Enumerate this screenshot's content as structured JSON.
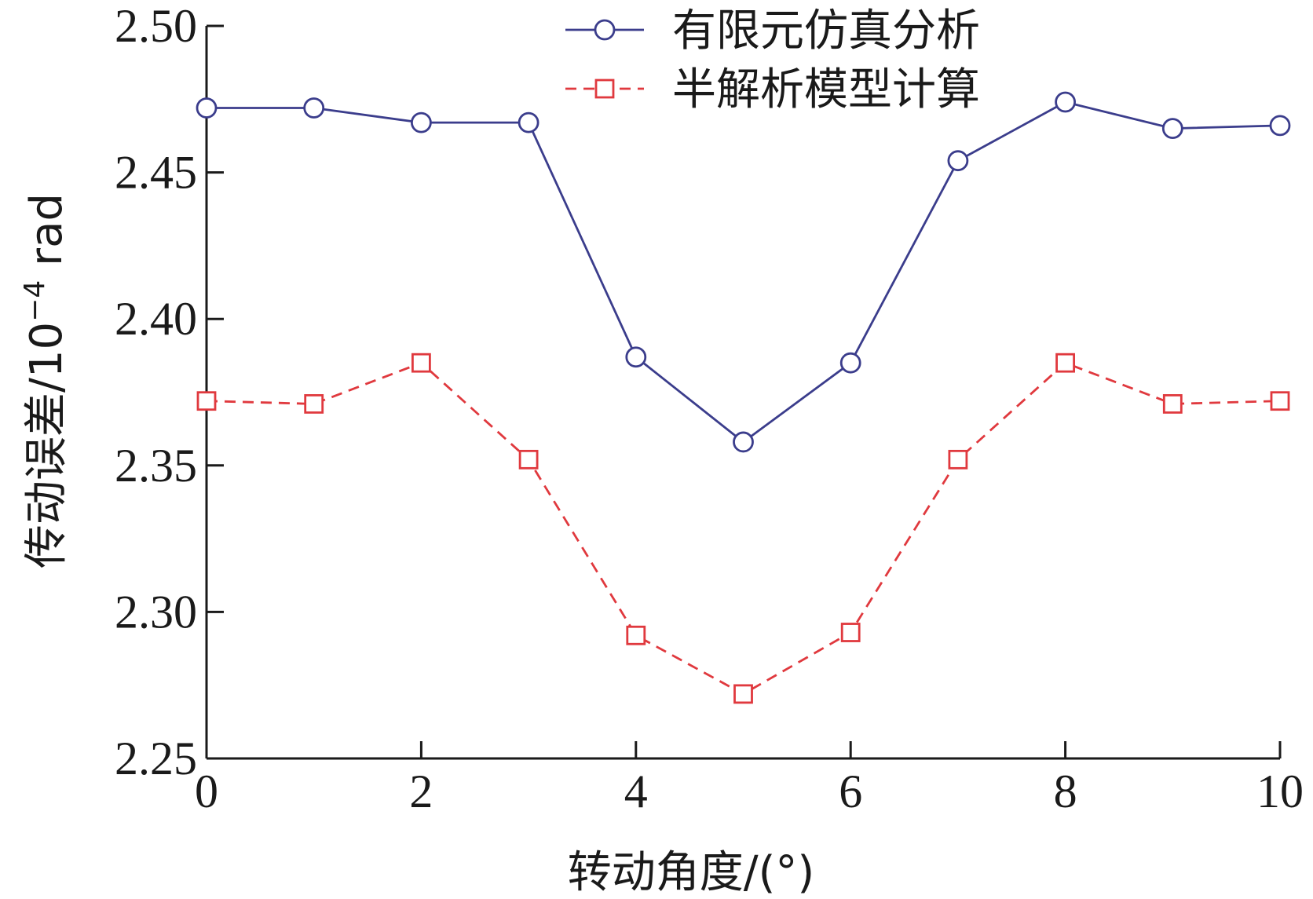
{
  "chart_data": {
    "type": "line",
    "xlabel": "转动角度/(°)",
    "ylabel": {
      "prefix": "传动误差/10",
      "sup": "−4",
      "suffix": " rad"
    },
    "xlim": [
      0,
      10
    ],
    "ylim": [
      2.25,
      2.5
    ],
    "x_ticks": [
      0,
      2,
      4,
      6,
      8,
      10
    ],
    "x_tick_labels": [
      "0",
      "2",
      "4",
      "6",
      "8",
      "10"
    ],
    "y_ticks": [
      2.25,
      2.3,
      2.35,
      2.4,
      2.45,
      2.5
    ],
    "y_tick_labels": [
      "2.25",
      "2.30",
      "2.35",
      "2.40",
      "2.45",
      "2.50"
    ],
    "grid": false,
    "legend_position": "top-right",
    "x": [
      0,
      1,
      2,
      3,
      4,
      5,
      6,
      7,
      8,
      9,
      10
    ],
    "series": [
      {
        "name": "有限元仿真分析",
        "values": [
          2.472,
          2.472,
          2.467,
          2.467,
          2.387,
          2.358,
          2.385,
          2.454,
          2.474,
          2.465,
          2.466
        ],
        "color": "#3b3d8c",
        "line_style": "solid",
        "marker": "circle"
      },
      {
        "name": "半解析模型计算",
        "values": [
          2.372,
          2.371,
          2.385,
          2.352,
          2.292,
          2.272,
          2.293,
          2.352,
          2.385,
          2.371,
          2.372
        ],
        "color": "#e0393e",
        "line_style": "dashed",
        "marker": "square"
      }
    ]
  }
}
